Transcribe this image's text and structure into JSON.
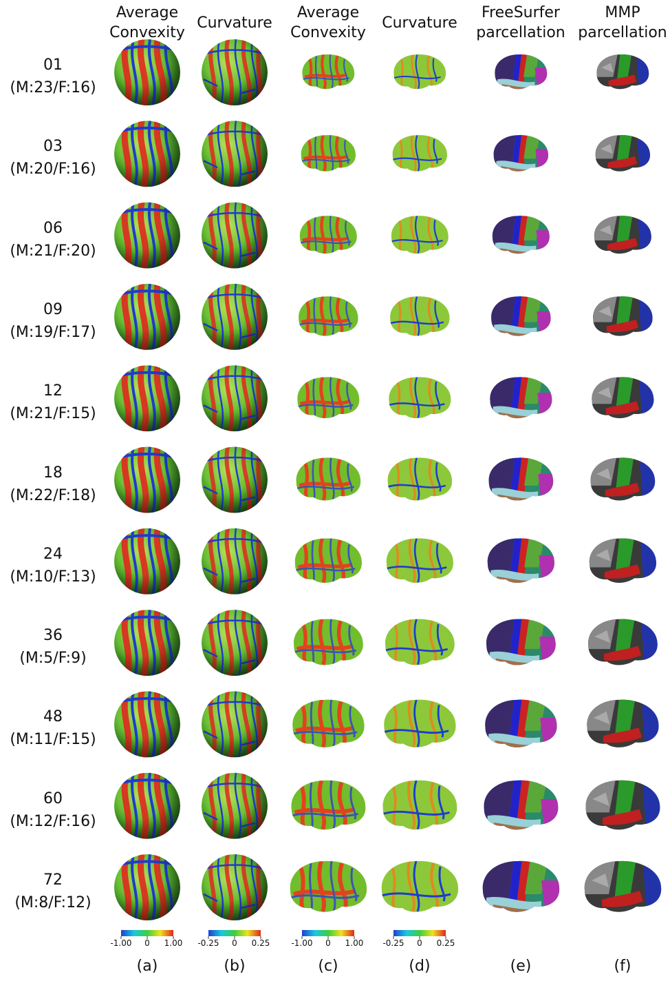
{
  "columns": [
    {
      "header": "Average Convexity",
      "label": "(a)",
      "colorbar": [
        "-1.00",
        "0",
        "1.00"
      ]
    },
    {
      "header": "Curvature",
      "label": "(b)",
      "colorbar": [
        "-0.25",
        "0",
        "0.25"
      ]
    },
    {
      "header": "Average Convexity",
      "label": "(c)",
      "colorbar": [
        "-1.00",
        "0",
        "1.00"
      ]
    },
    {
      "header": "Curvature",
      "label": "(d)",
      "colorbar": [
        "-0.25",
        "0",
        "0.25"
      ]
    },
    {
      "header": "FreeSurfer parcellation",
      "label": "(e)"
    },
    {
      "header": "MMP parcellation",
      "label": "(f)"
    }
  ],
  "rows": [
    {
      "age": "01",
      "counts": "(M:23/F:16)"
    },
    {
      "age": "03",
      "counts": "(M:20/F:16)"
    },
    {
      "age": "06",
      "counts": "(M:21/F:20)"
    },
    {
      "age": "09",
      "counts": "(M:19/F:17)"
    },
    {
      "age": "12",
      "counts": "(M:21/F:15)"
    },
    {
      "age": "18",
      "counts": "(M:22/F:18)"
    },
    {
      "age": "24",
      "counts": "(M:10/F:13)"
    },
    {
      "age": "36",
      "counts": "(M:5/F:9)"
    },
    {
      "age": "48",
      "counts": "(M:11/F:15)"
    },
    {
      "age": "60",
      "counts": "(M:12/F:16)"
    },
    {
      "age": "72",
      "counts": "(M:8/F:12)"
    }
  ]
}
